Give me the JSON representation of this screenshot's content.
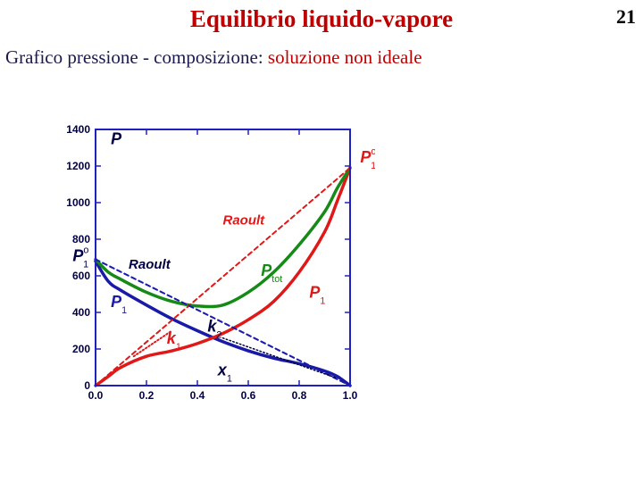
{
  "slide": {
    "title": "Equilibrio liquido-vapore",
    "page_number": "21",
    "subtitle_prefix": "Grafico pressione - composizione:",
    "subtitle_highlight": "soluzione non ideale"
  },
  "colors": {
    "title": "#c00000",
    "axis": "#2020c0",
    "blue": "#1a1aa8",
    "red": "#e01818",
    "green": "#168a16",
    "label_dark": "#000044"
  },
  "chart_data": {
    "type": "line",
    "xlim": [
      0,
      1
    ],
    "ylim": [
      0,
      1400
    ],
    "x_ticks": [
      "0.0",
      "0.2",
      "0.4",
      "0.6",
      "0.8",
      "1.0"
    ],
    "y_ticks": [
      "0",
      "200",
      "400",
      "600",
      "800",
      "1000",
      "1200",
      "1400"
    ],
    "series": [
      {
        "key": "blue",
        "style": "solid",
        "x": [
          0,
          0.05,
          0.1,
          0.2,
          0.3,
          0.4,
          0.5,
          0.6,
          0.7,
          0.8,
          0.9,
          0.95,
          1.0
        ],
        "y": [
          680,
          570,
          520,
          440,
          365,
          300,
          240,
          190,
          150,
          120,
          80,
          50,
          0
        ]
      },
      {
        "key": "red",
        "style": "solid",
        "x": [
          0,
          0.05,
          0.1,
          0.2,
          0.3,
          0.4,
          0.5,
          0.6,
          0.7,
          0.8,
          0.9,
          0.95,
          1.0
        ],
        "y": [
          0,
          50,
          100,
          160,
          190,
          230,
          285,
          360,
          460,
          620,
          840,
          1010,
          1190
        ]
      },
      {
        "key": "green",
        "style": "solid",
        "x": [
          0,
          0.05,
          0.1,
          0.2,
          0.3,
          0.4,
          0.5,
          0.6,
          0.7,
          0.8,
          0.9,
          0.95,
          1.0
        ],
        "y": [
          690,
          620,
          580,
          510,
          460,
          435,
          440,
          510,
          620,
          770,
          950,
          1080,
          1190
        ]
      },
      {
        "key": "raoult_red",
        "style": "dashed",
        "x": [
          0,
          1
        ],
        "y": [
          0,
          1190
        ]
      },
      {
        "key": "raoult_blue",
        "style": "dashed",
        "x": [
          0,
          1
        ],
        "y": [
          690,
          0
        ]
      },
      {
        "key": "k1",
        "style": "dotted",
        "x": [
          0.15,
          0.3
        ],
        "y": [
          160,
          300
        ]
      },
      {
        "key": "k2",
        "style": "dotted",
        "x": [
          0.5,
          0.95
        ],
        "y": [
          260,
          40
        ]
      }
    ],
    "annotations": [
      {
        "id": "p-axis",
        "text": "P",
        "sub": "",
        "sup": "",
        "color": "#000044",
        "x": 0.06,
        "y": 1320,
        "size": 18
      },
      {
        "id": "p1-star",
        "text": "P",
        "sub": "1",
        "sup": "o",
        "color": "#e01818",
        "x": 1.04,
        "y": 1220,
        "size": 18
      },
      {
        "id": "raoult-upper",
        "text": "Raoult",
        "sub": "",
        "sup": "",
        "color": "#e01818",
        "x": 0.5,
        "y": 880,
        "size": 15
      },
      {
        "id": "p-star-left",
        "text": "P",
        "sub": "1",
        "sup": "o",
        "color": "#000044",
        "x": -0.09,
        "y": 680,
        "size": 18
      },
      {
        "id": "raoult-lower",
        "text": "Raoult",
        "sub": "",
        "sup": "",
        "color": "#000044",
        "x": 0.13,
        "y": 640,
        "size": 15
      },
      {
        "id": "p-tot",
        "text": "P",
        "sub": "tot",
        "sup": "",
        "color": "#168a16",
        "x": 0.65,
        "y": 600,
        "size": 18
      },
      {
        "id": "p1-red",
        "text": "P",
        "sub": "1",
        "sup": "",
        "color": "#e01818",
        "x": 0.84,
        "y": 480,
        "size": 18
      },
      {
        "id": "p1-blue",
        "text": "P",
        "sub": "1",
        "sup": "",
        "color": "#1a1aa8",
        "x": 0.06,
        "y": 430,
        "size": 18
      },
      {
        "id": "k1",
        "text": "k",
        "sub": "1",
        "sup": "",
        "color": "#e01818",
        "x": 0.28,
        "y": 230,
        "size": 18
      },
      {
        "id": "k2",
        "text": "k",
        "sub": "2",
        "sup": "",
        "color": "#000044",
        "x": 0.44,
        "y": 295,
        "size": 18
      },
      {
        "id": "x1",
        "text": "x",
        "sub": "1",
        "sup": "",
        "color": "#000044",
        "x": 0.48,
        "y": 55,
        "size": 18
      }
    ]
  }
}
